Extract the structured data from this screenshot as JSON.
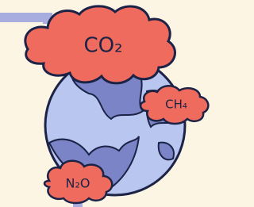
{
  "labels": {
    "co2": "CO₂",
    "ch4": "CH₄",
    "n2o": "N₂O"
  }
}
